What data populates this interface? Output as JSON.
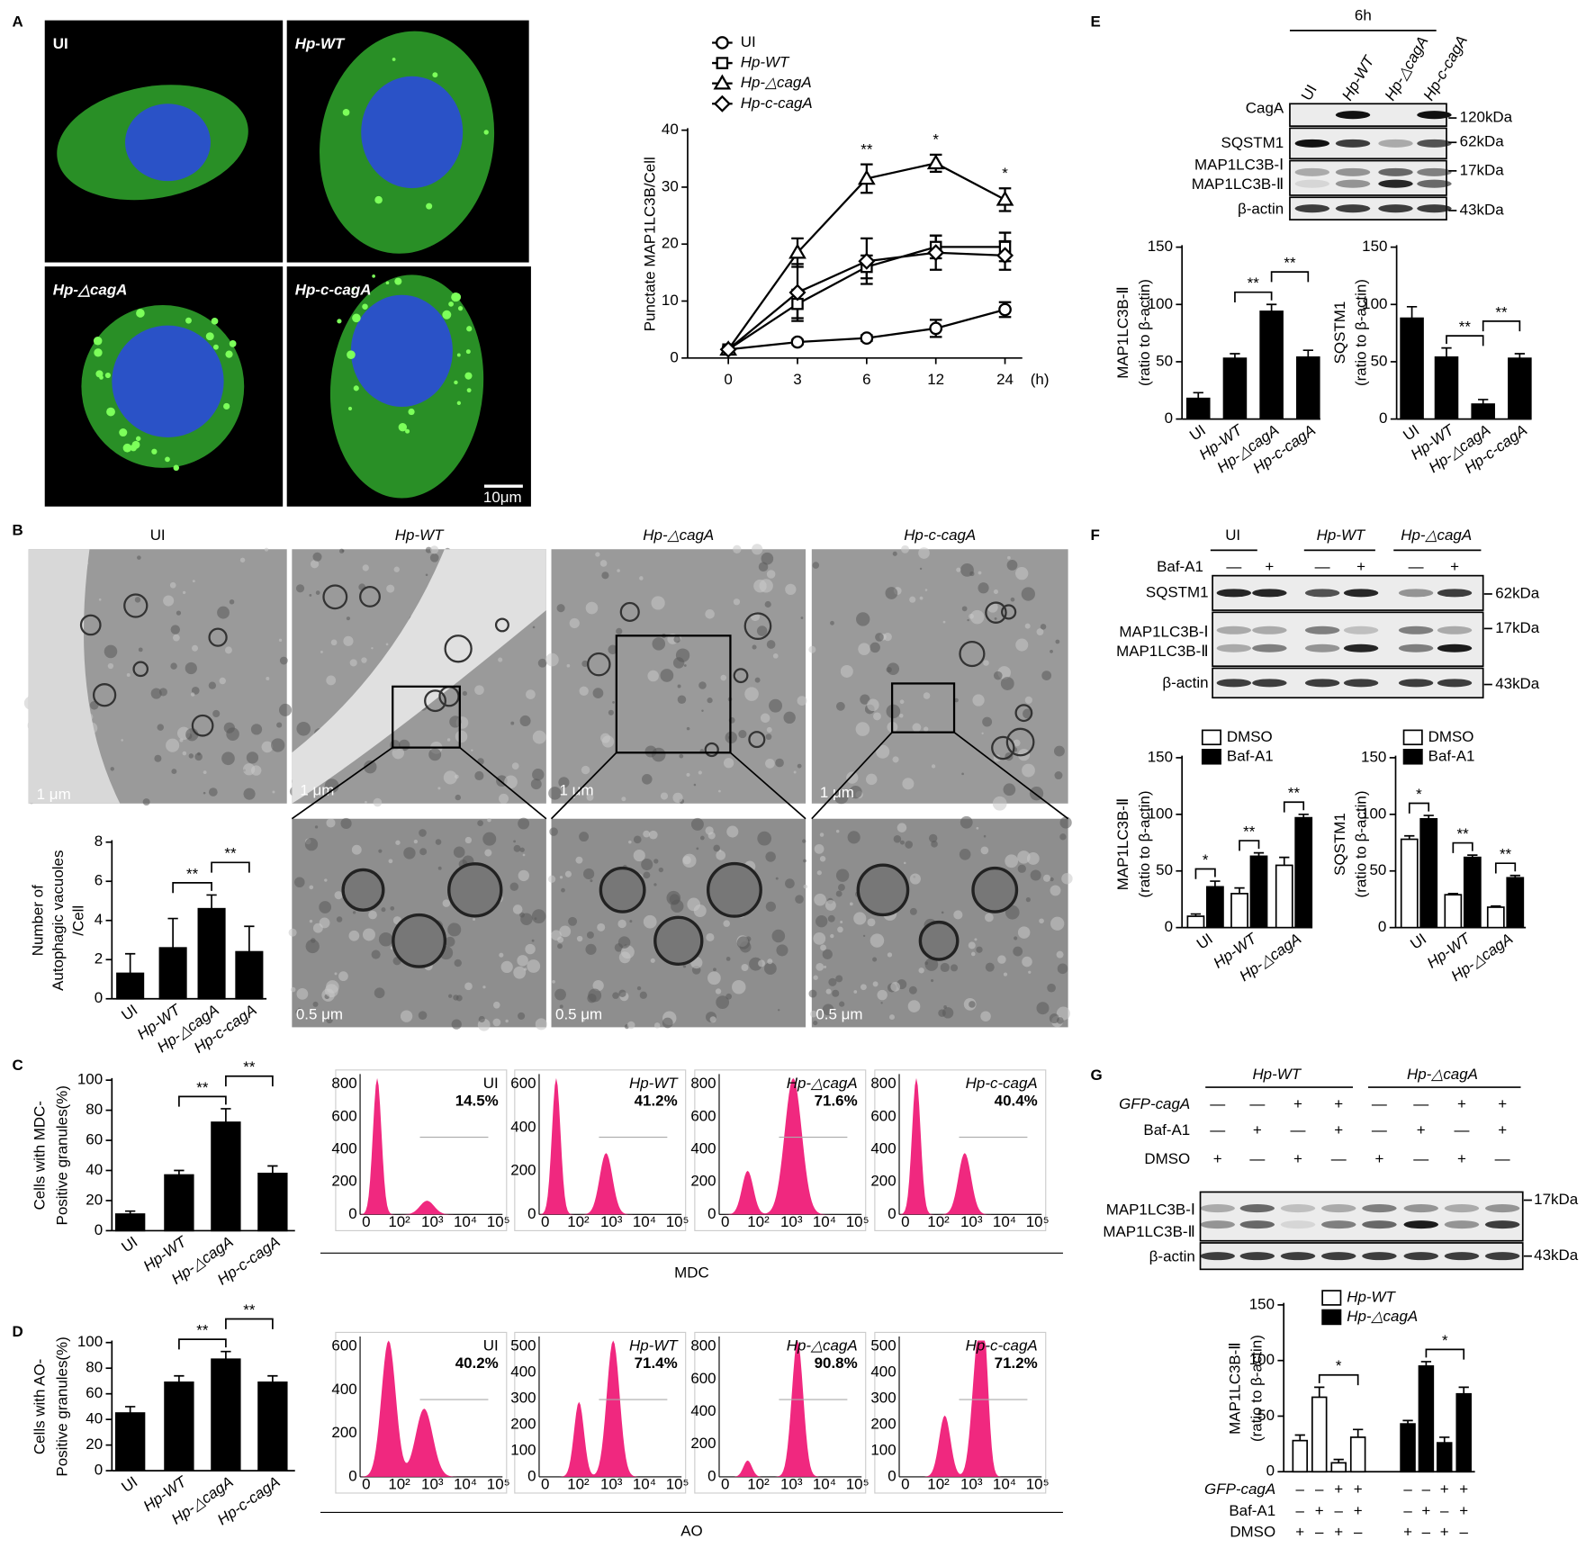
{
  "panel_labels": [
    "A",
    "B",
    "C",
    "D",
    "E",
    "F",
    "G"
  ],
  "fluorescence": {
    "labels": [
      "UI",
      "Hp-WT",
      "Hp-△cagA",
      "Hp-c-cagA"
    ],
    "scale_bar": "10μm"
  },
  "tem": {
    "titles": [
      "UI",
      "Hp-WT",
      "Hp-△cagA",
      "Hp-c-cagA"
    ],
    "scale_bars": [
      "1 μm",
      "1 μm",
      "1 μm",
      "1 μm"
    ],
    "zoom_scale_bars": [
      "0.5 μm",
      "0.5 μm",
      "0.5 μm"
    ]
  },
  "flow": {
    "xticks": [
      "0",
      "10²",
      "10³",
      "10⁴",
      "10⁵"
    ],
    "mdc": {
      "xlabel": "MDC",
      "panels": [
        {
          "label": "UI",
          "percent": "14.5%",
          "yticks": [
            0,
            200,
            400,
            600,
            800
          ]
        },
        {
          "label": "Hp-WT",
          "percent": "41.2%",
          "yticks": [
            0,
            200,
            400,
            600
          ]
        },
        {
          "label": "Hp-△cagA",
          "percent": "71.6%",
          "yticks": [
            0,
            200,
            400,
            600,
            800
          ]
        },
        {
          "label": "Hp-c-cagA",
          "percent": "40.4%",
          "yticks": [
            0,
            200,
            400,
            600,
            800
          ]
        }
      ]
    },
    "ao": {
      "xlabel": "AO",
      "panels": [
        {
          "label": "UI",
          "percent": "40.2%",
          "yticks": [
            0,
            200,
            400,
            600
          ]
        },
        {
          "label": "Hp-WT",
          "percent": "71.4%",
          "yticks": [
            0,
            100,
            200,
            300,
            400,
            500
          ]
        },
        {
          "label": "Hp-△cagA",
          "percent": "90.8%",
          "yticks": [
            0,
            200,
            400,
            600,
            800
          ]
        },
        {
          "label": "Hp-c-cagA",
          "percent": "71.2%",
          "yticks": [
            0,
            100,
            200,
            300,
            400,
            500
          ]
        }
      ]
    }
  },
  "blots": {
    "e": {
      "time": "6h",
      "lanes": [
        "UI",
        "Hp-WT",
        "Hp-△cagA",
        "Hp-c-cagA"
      ],
      "rows": [
        "CagA",
        "SQSTM1",
        "MAP1LC3B-Ⅰ",
        "MAP1LC3B-Ⅱ",
        "β-actin"
      ],
      "markers": [
        "120kDa",
        "62kDa",
        "17kDa",
        "43kDa"
      ]
    },
    "f": {
      "groups": [
        "UI",
        "Hp-WT",
        "Hp-△cagA"
      ],
      "treatment": "Baf-A1",
      "signs": [
        "—",
        "+",
        "—",
        "+",
        "—",
        "+"
      ],
      "rows": [
        "SQSTM1",
        "MAP1LC3B-Ⅰ",
        "MAP1LC3B-Ⅱ",
        "β-actin"
      ],
      "markers": [
        "62kDa",
        "17kDa",
        "43kDa"
      ]
    },
    "g": {
      "groups": [
        "Hp-WT",
        "Hp-△cagA"
      ],
      "conditions": [
        {
          "name": "GFP-cagA",
          "signs": [
            "—",
            "—",
            "+",
            "+",
            "—",
            "—",
            "+",
            "+"
          ]
        },
        {
          "name": "Baf-A1",
          "signs": [
            "—",
            "+",
            "—",
            "+",
            "—",
            "+",
            "—",
            "+"
          ]
        },
        {
          "name": "DMSO",
          "signs": [
            "+",
            "—",
            "+",
            "—",
            "+",
            "—",
            "+",
            "—"
          ]
        }
      ],
      "rows": [
        "MAP1LC3B-Ⅰ",
        "MAP1LC3B-Ⅱ",
        "β-actin"
      ],
      "markers": [
        "17kDa",
        "43kDa"
      ]
    }
  },
  "chart_data": [
    {
      "type": "line",
      "ylabel": [
        "Punctate MAP1LC3B/Cell"
      ],
      "xlabel": "(h)",
      "categories": [
        "0",
        "3",
        "6",
        "12",
        "24"
      ],
      "ylim": [
        0,
        40
      ],
      "yticks": [
        0,
        10,
        20,
        30,
        40
      ],
      "series": [
        {
          "name": "UI",
          "color": "#000000",
          "values": [
            1.5,
            2.8,
            3.5,
            5.2,
            8.5
          ],
          "errors": [
            0.5,
            0.4,
            0.5,
            1.5,
            1.3
          ]
        },
        {
          "name": "Hp-WT",
          "color": "#000000",
          "values": [
            1.5,
            9.5,
            16,
            19.5,
            19.5
          ],
          "errors": [
            0.5,
            2.5,
            2,
            2,
            2.5
          ]
        },
        {
          "name": "Hp-△cagA",
          "color": "#000000",
          "values": [
            1.5,
            18.5,
            31.5,
            34.2,
            27.8
          ],
          "errors": [
            0.5,
            2.5,
            2.5,
            1.5,
            2
          ]
        },
        {
          "name": "Hp-c-cagA",
          "color": "#000000",
          "values": [
            1.5,
            11.5,
            17,
            18.5,
            18
          ],
          "errors": [
            0.5,
            5,
            4,
            3,
            2.5
          ]
        }
      ],
      "annotations": [
        {
          "category": 2,
          "label": "**"
        },
        {
          "category": 3,
          "label": "*"
        },
        {
          "category": 4,
          "label": "*"
        }
      ]
    },
    {
      "type": "bar",
      "ylabel": [
        "Number of",
        "Autophagic vacuoles",
        "/Cell"
      ],
      "categories": [
        "UI",
        "Hp-WT",
        "Hp-△cagA",
        "Hp-c-cagA"
      ],
      "values": [
        1.3,
        2.6,
        4.6,
        2.4
      ],
      "errors": [
        1,
        1.5,
        0.7,
        1.3
      ],
      "color": "#000000",
      "ylim": [
        0,
        8
      ],
      "yticks": [
        0,
        2,
        4,
        6,
        8
      ],
      "comparisons": [
        {
          "categories": [
            1,
            2
          ],
          "label": "**"
        },
        {
          "categories": [
            2,
            3
          ],
          "label": "**"
        }
      ]
    },
    {
      "type": "bar",
      "ylabel": [
        "Cells with MDC-",
        "Positive granules(%)"
      ],
      "categories": [
        "UI",
        "Hp-WT",
        "Hp-△cagA",
        "Hp-c-cagA"
      ],
      "values": [
        11,
        37,
        72,
        38
      ],
      "errors": [
        2,
        3,
        9,
        5
      ],
      "color": "#000000",
      "ylim": [
        0,
        100
      ],
      "yticks": [
        0,
        20,
        40,
        60,
        80,
        100
      ],
      "comparisons": [
        {
          "categories": [
            1,
            2
          ],
          "label": "**"
        },
        {
          "categories": [
            2,
            3
          ],
          "label": "**"
        }
      ]
    },
    {
      "type": "bar",
      "ylabel": [
        "Cells with AO-",
        "Positive granules(%)"
      ],
      "categories": [
        "UI",
        "Hp-WT",
        "Hp-△cagA",
        "Hp-c-cagA"
      ],
      "values": [
        45,
        69,
        87,
        69
      ],
      "errors": [
        5,
        5,
        6,
        5
      ],
      "color": "#000000",
      "ylim": [
        0,
        100
      ],
      "yticks": [
        0,
        20,
        40,
        60,
        80,
        100
      ],
      "comparisons": [
        {
          "categories": [
            1,
            2
          ],
          "label": "**"
        },
        {
          "categories": [
            2,
            3
          ],
          "label": "**"
        }
      ]
    },
    {
      "type": "bar",
      "ylabel": [
        "MAP1LC3B-Ⅱ",
        "(ratio to β-actin)"
      ],
      "categories": [
        "UI",
        "Hp-WT",
        "Hp-△cagA",
        "Hp-c-cagA"
      ],
      "values": [
        18,
        53,
        94,
        54
      ],
      "errors": [
        5,
        4,
        6,
        6
      ],
      "color": "#000000",
      "ylim": [
        0,
        150
      ],
      "yticks": [
        0,
        50,
        100,
        150
      ],
      "comparisons": [
        {
          "categories": [
            1,
            2
          ],
          "label": "**"
        },
        {
          "categories": [
            2,
            3
          ],
          "label": "**"
        }
      ]
    },
    {
      "type": "bar",
      "ylabel": [
        "SQSTM1",
        "(ratio to β-actin)"
      ],
      "categories": [
        "UI",
        "Hp-WT",
        "Hp-△cagA",
        "Hp-c-cagA"
      ],
      "values": [
        88,
        54,
        13,
        53
      ],
      "errors": [
        10,
        8,
        4,
        4
      ],
      "color": "#000000",
      "ylim": [
        0,
        150
      ],
      "yticks": [
        0,
        50,
        100,
        150
      ],
      "comparisons": [
        {
          "categories": [
            1,
            2
          ],
          "label": "**"
        },
        {
          "categories": [
            2,
            3
          ],
          "label": "**"
        }
      ]
    },
    {
      "type": "grouped_bar",
      "ylabel": [
        "MAP1LC3B-Ⅱ",
        "(ratio to β-actin)"
      ],
      "categories": [
        "UI",
        "Hp-WT",
        "Hp-△cagA"
      ],
      "series": [
        {
          "name": "DMSO",
          "color": "#ffffff",
          "values": [
            10,
            30,
            55
          ],
          "errors": [
            2,
            5,
            7
          ]
        },
        {
          "name": "Baf-A1",
          "color": "#000000",
          "values": [
            36,
            63,
            97
          ],
          "errors": [
            5,
            3,
            3
          ]
        }
      ],
      "ylim": [
        0,
        150
      ],
      "yticks": [
        0,
        50,
        100,
        150
      ],
      "comparisons": [
        {
          "categories": [
            0
          ],
          "label": "*"
        },
        {
          "categories": [
            1
          ],
          "label": "**"
        },
        {
          "categories": [
            2
          ],
          "label": "**"
        }
      ]
    },
    {
      "type": "grouped_bar",
      "ylabel": [
        "SQSTM1",
        "(ratio to β-actin)"
      ],
      "categories": [
        "UI",
        "Hp-WT",
        "Hp-△cagA"
      ],
      "series": [
        {
          "name": "DMSO",
          "color": "#ffffff",
          "values": [
            78,
            29,
            18
          ],
          "errors": [
            3,
            1,
            1
          ]
        },
        {
          "name": "Baf-A1",
          "color": "#000000",
          "values": [
            96,
            62,
            44
          ],
          "errors": [
            3,
            2,
            2
          ]
        }
      ],
      "ylim": [
        0,
        150
      ],
      "yticks": [
        0,
        50,
        100,
        150
      ],
      "comparisons": [
        {
          "categories": [
            0
          ],
          "label": "*"
        },
        {
          "categories": [
            1
          ],
          "label": "**"
        },
        {
          "categories": [
            2
          ],
          "label": "**"
        }
      ]
    },
    {
      "type": "grouped_bar",
      "ylabel": [
        "MAP1LC3B-Ⅱ",
        "(ratio to β-actin)"
      ],
      "series": [
        {
          "name": "Hp-WT",
          "color": "#ffffff",
          "values": [
            28,
            67,
            8,
            31
          ],
          "errors": [
            5,
            9,
            3,
            7
          ]
        },
        {
          "name": "Hp-△cagA",
          "color": "#000000",
          "values": [
            43,
            95,
            26,
            70
          ],
          "errors": [
            3,
            4,
            5,
            6
          ]
        }
      ],
      "ylim": [
        0,
        150
      ],
      "yticks": [
        0,
        50,
        100,
        150
      ],
      "conditions": [
        {
          "name": "GFP-cagA",
          "signs": [
            "–",
            "–",
            "+",
            "+",
            "–",
            "–",
            "+",
            "+"
          ]
        },
        {
          "name": "Baf-A1",
          "signs": [
            "–",
            "+",
            "–",
            "+",
            "–",
            "+",
            "–",
            "+"
          ]
        },
        {
          "name": "DMSO",
          "signs": [
            "+",
            "–",
            "+",
            "–",
            "+",
            "–",
            "+",
            "–"
          ]
        }
      ],
      "comparisons": [
        {
          "series": 0,
          "categories": [
            1,
            3
          ],
          "label": "*"
        },
        {
          "series": 1,
          "categories": [
            1,
            3
          ],
          "label": "*"
        }
      ]
    }
  ]
}
